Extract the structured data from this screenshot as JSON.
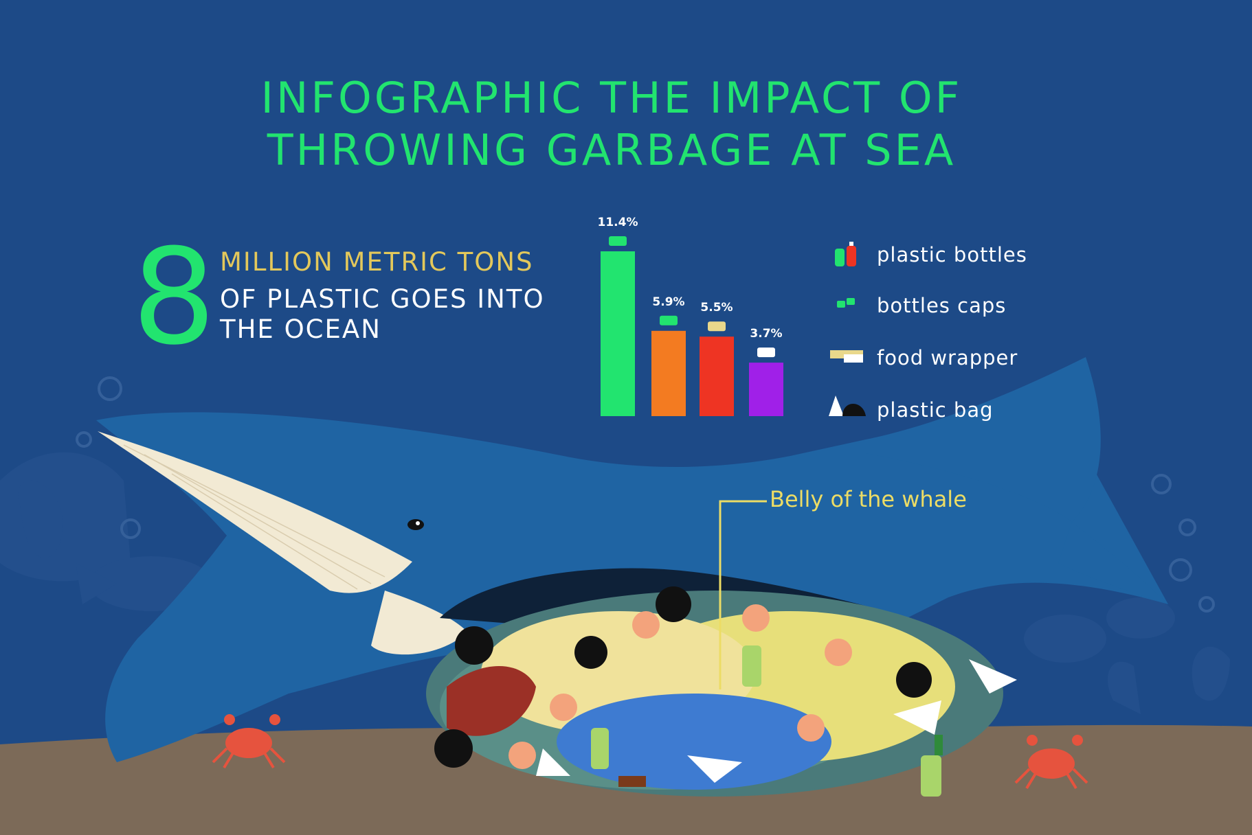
{
  "title": {
    "line1": "INFOGRAPHIC THE IMPACT OF",
    "line2": "THROWING GARBAGE AT SEA"
  },
  "stat": {
    "number": "8",
    "line1": "MILLION METRIC TONS",
    "line2": "OF PLASTIC GOES INTO",
    "line3": "THE OCEAN"
  },
  "annotation": {
    "belly": "Belly of the whale"
  },
  "colors": {
    "background": "#1d4a87",
    "accent_green": "#22e46f",
    "accent_yellow": "#e3c85b",
    "seabed": "#7c6a58",
    "whale": "#1f64a3"
  },
  "chart_data": {
    "type": "bar",
    "categories": [
      "plastic bottles",
      "bottles caps",
      "food wrapper",
      "plastic bag"
    ],
    "values": [
      11.4,
      5.9,
      5.5,
      3.7
    ],
    "labels": [
      "11.4%",
      "5.9%",
      "5.5%",
      "3.7%"
    ],
    "colors": [
      "#22e46f",
      "#f37b21",
      "#ee3423",
      "#a020e8"
    ],
    "icons": [
      "plastic-bottles-icon",
      "bottle-caps-icon",
      "food-wrapper-icon",
      "plastic-bag-icon"
    ],
    "ylim": [
      0,
      11.4
    ],
    "grid": false,
    "legend": "right"
  }
}
